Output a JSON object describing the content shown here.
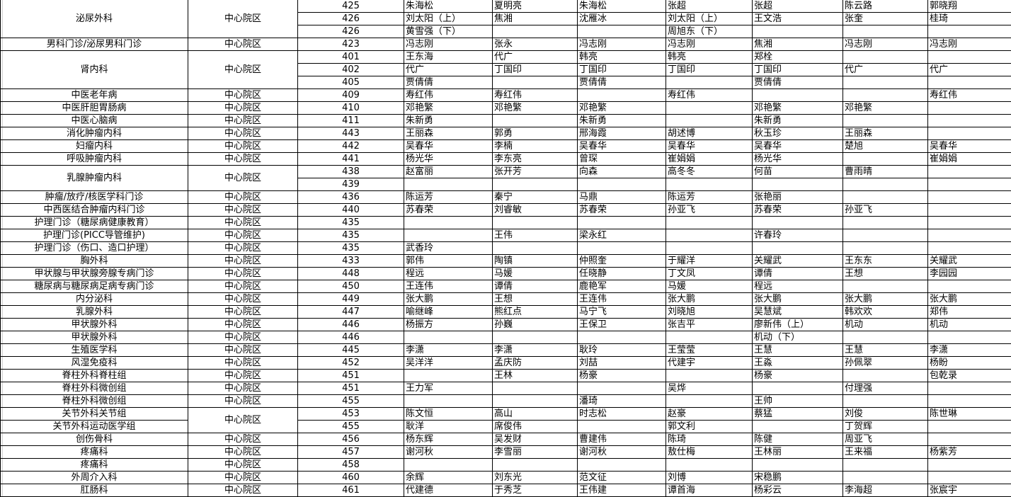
{
  "groups": [
    {
      "dept": "泌尿外科",
      "campus": "中心院区",
      "rooms": [
        {
          "room": "425",
          "doctors": [
            "朱海松",
            "夏明亮",
            "朱海松",
            "张超",
            "张超",
            "陈云路",
            "郭晓翔"
          ]
        },
        {
          "room": "426",
          "doctors": [
            "刘太阳（上）",
            "焦湘",
            "沈雁冰",
            "刘太阳（上）",
            "王文浩",
            "张奎",
            "桂琦"
          ]
        },
        {
          "room": "426",
          "doctors": [
            "黄雪强（下）",
            "",
            "",
            "周旭东（下）",
            "",
            "",
            ""
          ]
        }
      ]
    },
    {
      "dept": "男科门诊/泌尿男科门诊",
      "campus": "中心院区",
      "rooms": [
        {
          "room": "423",
          "doctors": [
            "冯志刚",
            "张永",
            "冯志刚",
            "冯志刚",
            "焦湘",
            "冯志刚",
            "冯志刚"
          ]
        }
      ]
    },
    {
      "dept": "肾内科",
      "campus": "中心院区",
      "rooms": [
        {
          "room": "401",
          "doctors": [
            "王东海",
            "代广",
            "韩亮",
            "韩亮",
            "郑栓",
            "",
            ""
          ]
        },
        {
          "room": "402",
          "doctors": [
            "代广",
            "丁国印",
            "丁国印",
            "丁国印",
            "丁国印",
            "代广",
            "代广"
          ]
        },
        {
          "room": "405",
          "doctors": [
            "贾倩倩",
            "",
            "贾倩倩",
            "",
            "贾倩倩",
            "",
            ""
          ]
        }
      ]
    },
    {
      "dept": "中医老年病",
      "campus": "中心院区",
      "rooms": [
        {
          "room": "409",
          "doctors": [
            "寿红伟",
            "寿红伟",
            "",
            "寿红伟",
            "",
            "",
            "寿红伟"
          ]
        }
      ]
    },
    {
      "dept": "中医肝胆胃肠病",
      "campus": "中心院区",
      "rooms": [
        {
          "room": "410",
          "doctors": [
            "邓艳繁",
            "邓艳繁",
            "邓艳繁",
            "",
            "邓艳繁",
            "邓艳繁",
            ""
          ]
        }
      ]
    },
    {
      "dept": "中医心脑病",
      "campus": "中心院区",
      "rooms": [
        {
          "room": "411",
          "doctors": [
            "朱新勇",
            "",
            "朱新勇",
            "",
            "朱新勇",
            "",
            ""
          ]
        }
      ]
    },
    {
      "dept": "消化肿瘤内科",
      "campus": "中心院区",
      "rooms": [
        {
          "room": "443",
          "doctors": [
            "王丽森",
            "郭勇",
            "邢海霞",
            "胡述博",
            "秋玉珍",
            "王丽森",
            ""
          ]
        }
      ]
    },
    {
      "dept": "妇瘤内科",
      "campus": "中心院区",
      "rooms": [
        {
          "room": "442",
          "doctors": [
            "吴春华",
            "李楠",
            "吴春华",
            "吴春华",
            "吴春华",
            "楚旭",
            "吴春华"
          ]
        }
      ]
    },
    {
      "dept": "呼吸肿瘤内科",
      "campus": "中心院区",
      "rooms": [
        {
          "room": "441",
          "doctors": [
            "杨光华",
            "李东亮",
            "曾琛",
            "崔娟娟",
            "杨光华",
            "",
            "崔娟娟"
          ]
        }
      ]
    },
    {
      "dept": "乳腺肿瘤内科",
      "campus": "中心院区",
      "rooms": [
        {
          "room": "438",
          "doctors": [
            "赵富丽",
            "张开芳",
            "向森",
            "高冬冬",
            "何苗",
            "曹雨晴",
            ""
          ]
        },
        {
          "room": "439",
          "doctors": [
            "",
            "",
            "",
            "",
            "",
            "",
            ""
          ]
        }
      ]
    },
    {
      "dept": "肿瘤/放疗/核医学科门诊",
      "campus": "中心院区",
      "rooms": [
        {
          "room": "436",
          "doctors": [
            "陈运芳",
            "秦宁",
            "马鼎",
            "陈运芳",
            "张艳丽",
            "",
            ""
          ]
        }
      ]
    },
    {
      "dept": "中西医结合肿瘤内科门诊",
      "campus": "中心院区",
      "rooms": [
        {
          "room": "440",
          "doctors": [
            "苏春荣",
            "刘睿敏",
            "苏春荣",
            "孙亚飞",
            "苏春荣",
            "孙亚飞",
            ""
          ]
        }
      ]
    },
    {
      "dept": "护理门诊（糖尿病健康教育）",
      "campus": "中心院区",
      "rooms": [
        {
          "room": "435",
          "doctors": [
            "",
            "",
            "",
            "",
            "",
            "",
            ""
          ]
        }
      ]
    },
    {
      "dept": "护理门诊(PICC导管维护)",
      "campus": "中心院区",
      "rooms": [
        {
          "room": "435",
          "doctors": [
            "",
            "王伟",
            "梁永红",
            "",
            "许春玲",
            "",
            ""
          ]
        }
      ]
    },
    {
      "dept": "护理门诊（伤口、造口护理）",
      "campus": "中心院区",
      "rooms": [
        {
          "room": "435",
          "doctors": [
            "武香玲",
            "",
            "",
            "",
            "",
            "",
            ""
          ]
        }
      ]
    },
    {
      "dept": "胸外科",
      "campus": "中心院区",
      "rooms": [
        {
          "room": "433",
          "doctors": [
            "郭伟",
            "陶镇",
            "仲照奎",
            "于耀洋",
            "关耀武",
            "王东东",
            "关耀武"
          ]
        }
      ]
    },
    {
      "dept": "甲状腺与甲状腺旁腺专病门诊",
      "campus": "中心院区",
      "rooms": [
        {
          "room": "448",
          "doctors": [
            "程远",
            "马媛",
            "任晓静",
            "丁文凤",
            "谭倩",
            "王想",
            "李园园"
          ]
        }
      ]
    },
    {
      "dept": "糖尿病与糖尿病足病专病门诊",
      "campus": "中心院区",
      "rooms": [
        {
          "room": "450",
          "doctors": [
            "王连伟",
            "谭倩",
            "鹿艳军",
            "马媛",
            "程远",
            "",
            ""
          ]
        }
      ]
    },
    {
      "dept": "内分泌科",
      "campus": "中心院区",
      "rooms": [
        {
          "room": "449",
          "doctors": [
            "张大鹏",
            "王想",
            "王连伟",
            "张大鹏",
            "张大鹏",
            "张大鹏",
            "张大鹏"
          ]
        }
      ]
    },
    {
      "dept": "乳腺外科",
      "campus": "中心院区",
      "rooms": [
        {
          "room": "447",
          "doctors": [
            "喻继峰",
            "熊红点",
            "马宁飞",
            "刘晓旭",
            "吴慧斌",
            "韩欢欢",
            "郑伟"
          ]
        }
      ]
    },
    {
      "dept": "甲状腺外科",
      "campus": "中心院区",
      "rooms": [
        {
          "room": "446",
          "doctors": [
            "杨振方",
            "孙巍",
            "王保卫",
            "张吉平",
            "廖新伟（上）",
            "机动",
            "机动"
          ]
        }
      ]
    },
    {
      "dept": "甲状腺外科",
      "campus": "中心院区",
      "rooms": [
        {
          "room": "446",
          "doctors": [
            "",
            "",
            "",
            "",
            "机动（下）",
            "",
            ""
          ]
        }
      ]
    },
    {
      "dept": "生殖医学科",
      "campus": "中心院区",
      "rooms": [
        {
          "room": "445",
          "doctors": [
            "李潇",
            "李潇",
            "耿玲",
            "王莹莹",
            "王慧",
            "王慧",
            "李潇"
          ]
        }
      ]
    },
    {
      "dept": "风湿免疫科",
      "campus": "中心院区",
      "rooms": [
        {
          "room": "452",
          "doctors": [
            "吴洋洋",
            "孟庆防",
            "刘喆",
            "代建宇",
            "王淼",
            "孙佩翠",
            "杨盼"
          ]
        }
      ]
    },
    {
      "dept": "脊柱外科脊柱组",
      "campus": "中心院区",
      "rooms": [
        {
          "room": "451",
          "doctors": [
            "",
            "王林",
            "杨豪",
            "",
            "杨豪",
            "",
            "包乾录"
          ]
        }
      ]
    },
    {
      "dept": "脊柱外科微创组",
      "campus": "中心院区",
      "rooms": [
        {
          "room": "451",
          "doctors": [
            "王力军",
            "",
            "",
            "吴烨",
            "",
            "付理强",
            ""
          ]
        }
      ]
    },
    {
      "dept": "脊柱外科微创组",
      "campus": "中心院区",
      "rooms": [
        {
          "room": "455",
          "doctors": [
            "",
            "",
            "潘琦",
            "",
            "王帅",
            "",
            ""
          ]
        }
      ]
    },
    {
      "dept": "关节外科关节组",
      "campus": "中心院区",
      "rooms": [
        {
          "room": "453",
          "doctors": [
            "陈文恒",
            "高山",
            "时志松",
            "赵豪",
            "蔡猛",
            "刘俊",
            "陈世琳"
          ]
        }
      ]
    },
    {
      "dept": "关节外科运动医学组",
      "campus": "",
      "rooms": [
        {
          "room": "455",
          "doctors": [
            "耿洋",
            "席俊伟",
            "",
            "郭文利",
            "",
            "丁贺辉",
            ""
          ]
        }
      ]
    },
    {
      "dept": "创伤骨科",
      "campus": "中心院区",
      "rooms": [
        {
          "room": "456",
          "doctors": [
            "杨东辉",
            "吴发财",
            "曹建伟",
            "陈琦",
            "陈健",
            "周亚飞",
            ""
          ]
        }
      ]
    },
    {
      "dept": "疼痛科",
      "campus": "中心院区",
      "rooms": [
        {
          "room": "457",
          "doctors": [
            "谢河秋",
            "李雪丽",
            "谢河秋",
            "敖仕梅",
            "王林丽",
            "王来福",
            "杨紫芳"
          ]
        }
      ]
    },
    {
      "dept": "疼痛科",
      "campus": "中心院区",
      "rooms": [
        {
          "room": "458",
          "doctors": [
            "",
            "",
            "",
            "",
            "",
            "",
            ""
          ]
        }
      ]
    },
    {
      "dept": "外周介入科",
      "campus": "中心院区",
      "rooms": [
        {
          "room": "460",
          "doctors": [
            "余辉",
            "刘东光",
            "范文征",
            "刘博",
            "宋稳鹏",
            "",
            ""
          ]
        }
      ]
    },
    {
      "dept": "肛肠科",
      "campus": "中心院区",
      "rooms": [
        {
          "room": "461",
          "doctors": [
            "代建德",
            "于秀芝",
            "王伟建",
            "谭首海",
            "杨彩云",
            "李海超",
            "张宸宇"
          ]
        }
      ]
    }
  ]
}
